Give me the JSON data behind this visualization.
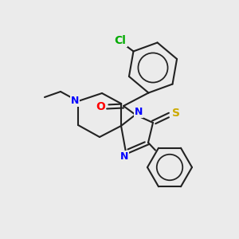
{
  "bg_color": "#ebebeb",
  "bond_color": "#222222",
  "bond_width": 1.5,
  "atom_colors": {
    "N": "#0000ff",
    "O": "#ff0000",
    "S": "#ccaa00",
    "Cl": "#00aa00"
  },
  "fig_size": [
    3.0,
    3.0
  ],
  "dpi": 100,
  "canvas": 300
}
